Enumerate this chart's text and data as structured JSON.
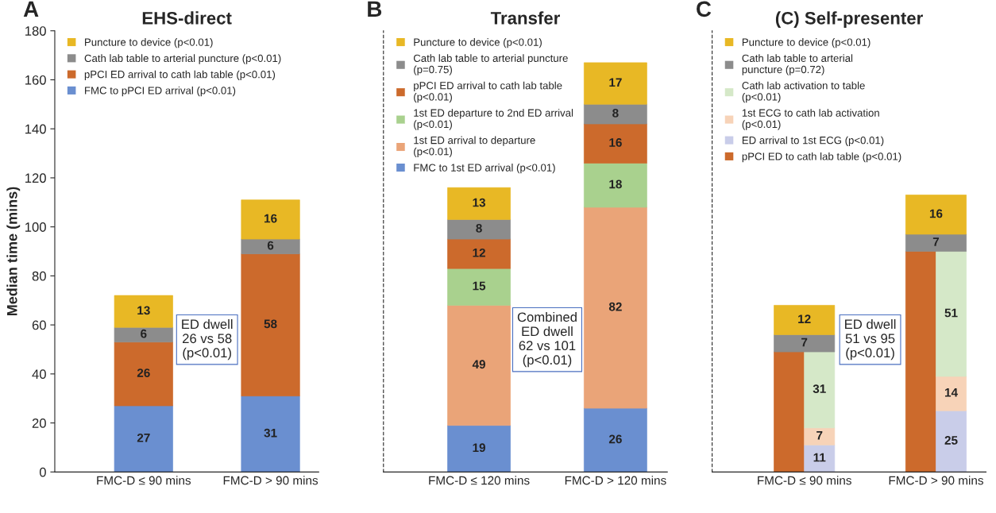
{
  "chart_data": [
    {
      "type": "bar",
      "title": "EHS-direct",
      "ylabel": "Median time (mins)",
      "stacked": true,
      "data_labels": true,
      "legend": "top left",
      "grid": false,
      "categories": [
        "FMC-D ≤ 90 mins",
        "FMC-D > 90 mins"
      ],
      "ylim": [
        0,
        180
      ],
      "yticks": [
        0,
        20,
        40,
        60,
        80,
        100,
        120,
        140,
        160,
        180
      ],
      "annotations": [
        "A",
        "ED dwell\n26 vs 58\n(p<0.01)"
      ],
      "series": [
        {
          "name": "FMC to pPCI ED arrival (p<0.01)",
          "color": "#6a8fd0",
          "values": [
            27,
            31
          ]
        },
        {
          "name": "pPCI ED arrival to cath lab table (p<0.01)",
          "color": "#cc6a2c",
          "values": [
            26,
            58
          ]
        },
        {
          "name": "Cath lab table to arterial puncture (p<0.01)",
          "color": "#8c8c8c",
          "values": [
            6,
            6
          ]
        },
        {
          "name": "Puncture to device (p<0.01)",
          "color": "#e8b825",
          "values": [
            13,
            16
          ]
        }
      ]
    },
    {
      "type": "bar",
      "title": "Transfer",
      "stacked": true,
      "data_labels": true,
      "legend": "top left",
      "grid": false,
      "tick_labels": "x",
      "categories": [
        "FMC-D ≤ 120 mins",
        "FMC-D > 120 mins"
      ],
      "ylim": [
        0,
        180
      ],
      "annotations": [
        "B",
        "Combined\nED dwell\n62 vs 101\n(p<0.01)"
      ],
      "series": [
        {
          "name": "FMC to 1st ED arrival (p<0.01)",
          "color": "#6a8fd0",
          "values": [
            19,
            26
          ]
        },
        {
          "name": "1st ED arrival to departure\n(p<0.01)",
          "color": "#eaa478",
          "values": [
            49,
            82
          ]
        },
        {
          "name": "1st ED departure to 2nd ED arrival\n(p<0.01)",
          "color": "#a9d18e",
          "values": [
            15,
            18
          ]
        },
        {
          "name": "pPCI ED arrival to cath lab table\n(p<0.01)",
          "color": "#cc6a2c",
          "values": [
            12,
            16
          ]
        },
        {
          "name": "Cath lab table to arterial puncture\n(p=0.75)",
          "color": "#8c8c8c",
          "values": [
            8,
            8
          ]
        },
        {
          "name": "Puncture to device (p<0.01)",
          "color": "#e8b825",
          "values": [
            13,
            17
          ]
        }
      ]
    },
    {
      "type": "bar",
      "title": "(C) Self-presenter",
      "legend": "top left",
      "grid": false,
      "tick_labels": "x",
      "categories": [
        "FMC-D ≤ 90 mins",
        "FMC-D > 90 mins"
      ],
      "ylim": [
        0,
        180
      ],
      "annotations": [
        "C",
        "ED dwell\n51 vs 95\n(p<0.01)"
      ],
      "series": [
        {
          "name": "pPCI ED to cath lab table (p<0.01)",
          "color": "#cc6a2c",
          "base": [
            0,
            0
          ],
          "values": [
            49,
            90
          ],
          "value_labels": [
            null,
            null
          ]
        },
        {
          "name": "ED arrival to 1st ECG (p<0.01)",
          "color": "#c9cde9",
          "base": [
            0,
            0
          ],
          "values": [
            11,
            25
          ],
          "value_labels": [
            "11",
            "25"
          ]
        },
        {
          "name": "1st ECG to cath lab activation\n(p<0.01)",
          "color": "#f7d3b8",
          "base": [
            11,
            25
          ],
          "values": [
            7,
            14
          ],
          "value_labels": [
            "7",
            "14"
          ]
        },
        {
          "name": "Cath lab activation to table\n(p<0.01)",
          "color": "#d5e8c8",
          "base": [
            18,
            39
          ],
          "values": [
            31,
            51
          ],
          "value_labels": [
            "31",
            "51"
          ]
        },
        {
          "name": "Cath lab table to arterial\npuncture (p=0.72)",
          "color": "#8c8c8c",
          "base": [
            49,
            90
          ],
          "values": [
            7,
            7
          ],
          "value_labels": [
            "7",
            "7"
          ]
        },
        {
          "name": "Puncture to device (p<0.01)",
          "color": "#e8b825",
          "base": [
            56,
            97
          ],
          "values": [
            12,
            16
          ],
          "value_labels": [
            "12",
            "16"
          ]
        }
      ]
    }
  ]
}
